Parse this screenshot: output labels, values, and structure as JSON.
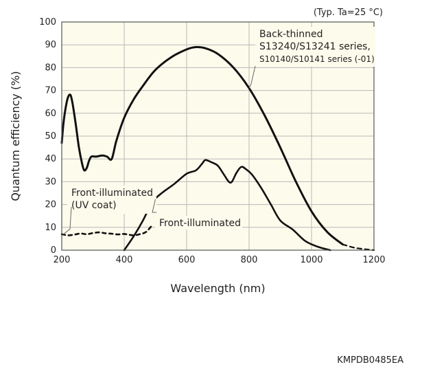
{
  "chart_data": {
    "type": "line",
    "note": "(Typ. Ta=25 °C)",
    "xlabel": "Wavelength (nm)",
    "ylabel": "Quantum efficiency (%)",
    "xlim": [
      200,
      1200
    ],
    "ylim": [
      0,
      100
    ],
    "xticks": [
      200,
      400,
      600,
      800,
      1000,
      1200
    ],
    "yticks": [
      0,
      10,
      20,
      30,
      40,
      50,
      60,
      70,
      80,
      90,
      100
    ],
    "grid": true,
    "plot_bg": "#fdfbec",
    "line_color": "#111111",
    "series": [
      {
        "key": "back",
        "solid": [
          [
            200,
            47
          ],
          [
            205,
            55
          ],
          [
            212,
            62
          ],
          [
            220,
            67
          ],
          [
            228,
            68
          ],
          [
            235,
            64
          ],
          [
            245,
            55
          ],
          [
            255,
            45
          ],
          [
            265,
            38
          ],
          [
            272,
            35
          ],
          [
            280,
            36
          ],
          [
            287,
            39
          ],
          [
            295,
            41
          ],
          [
            310,
            41
          ],
          [
            330,
            41.5
          ],
          [
            345,
            41
          ],
          [
            360,
            40
          ],
          [
            375,
            48
          ],
          [
            400,
            58
          ],
          [
            430,
            66
          ],
          [
            460,
            72
          ],
          [
            500,
            79
          ],
          [
            550,
            84.5
          ],
          [
            600,
            88
          ],
          [
            630,
            89
          ],
          [
            660,
            88.5
          ],
          [
            700,
            86
          ],
          [
            750,
            80
          ],
          [
            800,
            71
          ],
          [
            850,
            59
          ],
          [
            900,
            45
          ],
          [
            950,
            30
          ],
          [
            1000,
            17
          ],
          [
            1050,
            8
          ],
          [
            1100,
            2.5
          ]
        ],
        "dashed": [
          [
            1100,
            2.5
          ],
          [
            1140,
            1
          ],
          [
            1180,
            0.3
          ],
          [
            1200,
            0
          ]
        ]
      },
      {
        "key": "front",
        "solid": [
          [
            400,
            0
          ],
          [
            430,
            6
          ],
          [
            460,
            13
          ],
          [
            490,
            21
          ],
          [
            520,
            25
          ],
          [
            560,
            29
          ],
          [
            600,
            33.5
          ],
          [
            630,
            35
          ],
          [
            650,
            38
          ],
          [
            660,
            39.5
          ],
          [
            680,
            38.5
          ],
          [
            700,
            37
          ],
          [
            720,
            33
          ],
          [
            735,
            30
          ],
          [
            745,
            30
          ],
          [
            760,
            34
          ],
          [
            775,
            36.5
          ],
          [
            790,
            35.5
          ],
          [
            810,
            33
          ],
          [
            840,
            27
          ],
          [
            870,
            20
          ],
          [
            900,
            13
          ],
          [
            940,
            9
          ],
          [
            980,
            4
          ],
          [
            1020,
            1.5
          ],
          [
            1060,
            0
          ]
        ]
      },
      {
        "key": "uv",
        "dashed": [
          [
            200,
            7
          ],
          [
            220,
            6.5
          ],
          [
            240,
            6.8
          ],
          [
            260,
            7.3
          ],
          [
            280,
            7
          ],
          [
            300,
            7.5
          ],
          [
            320,
            7.8
          ],
          [
            340,
            7.4
          ],
          [
            360,
            7.2
          ],
          [
            380,
            6.9
          ],
          [
            400,
            7.1
          ],
          [
            430,
            6.5
          ],
          [
            450,
            7
          ],
          [
            470,
            8
          ],
          [
            490,
            11
          ]
        ]
      }
    ],
    "annotations": [
      {
        "key": "back",
        "lines": [
          "Back-thinned",
          "S13240/S13241 series,",
          "S10140/S10141 series (-01)"
        ]
      },
      {
        "key": "uv",
        "lines": [
          "Front-illuminated",
          "(UV coat)"
        ]
      },
      {
        "key": "front",
        "lines": [
          "Front-illuminated"
        ]
      }
    ]
  },
  "code": "KMPDB0485EA"
}
